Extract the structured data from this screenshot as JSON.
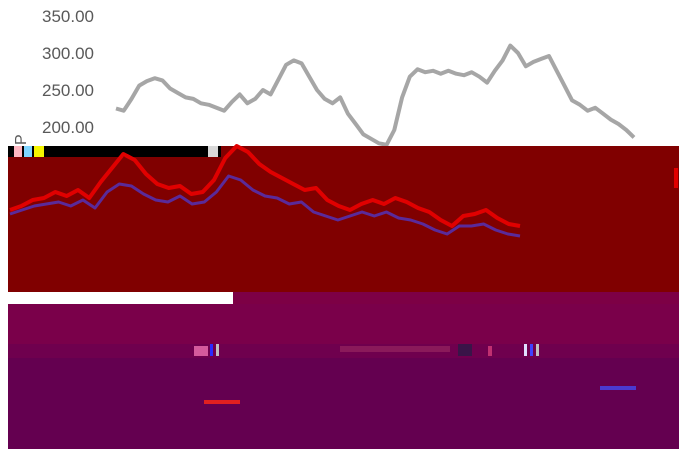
{
  "axis": {
    "y_ticks": [
      "350.00",
      "300.00",
      "250.00",
      "200.00"
    ],
    "label_fragment": "P"
  },
  "colors": {
    "grey_series": "#a6a6a6",
    "red_series": "#e00000",
    "purple_series": "#5a2a9a",
    "band_red": "#800000",
    "band_magenta": "#7a004a",
    "band_plum": "#640050"
  },
  "series_grey": [
    225,
    222,
    238,
    256,
    262,
    266,
    263,
    252,
    246,
    240,
    238,
    232,
    230,
    226,
    222,
    234,
    244,
    232,
    238,
    250,
    244,
    264,
    284,
    290,
    286,
    268,
    250,
    238,
    232,
    240,
    218,
    204,
    190,
    184,
    178,
    176,
    196,
    240,
    268,
    278,
    274,
    276,
    272,
    276,
    272,
    270,
    274,
    268,
    260,
    276,
    290,
    310,
    300,
    282,
    288,
    292,
    296,
    276,
    256,
    236,
    230,
    222,
    226,
    218,
    210,
    204,
    196,
    186
  ],
  "series_red": [
    186,
    190,
    196,
    198,
    204,
    200,
    206,
    198,
    214,
    228,
    242,
    236,
    222,
    212,
    208,
    210,
    202,
    204,
    216,
    238,
    250,
    244,
    232,
    224,
    218,
    212,
    206,
    208,
    196,
    190,
    186,
    192,
    196,
    192,
    198,
    194,
    188,
    184,
    176,
    170,
    180,
    182,
    186,
    178,
    172,
    170
  ],
  "series_purple": [
    202,
    206,
    210,
    212,
    214,
    210,
    216,
    208,
    224,
    232,
    230,
    222,
    216,
    214,
    220,
    212,
    214,
    224,
    240,
    236,
    226,
    220,
    218,
    212,
    214,
    204,
    200,
    196,
    200,
    204,
    200,
    204,
    198,
    196,
    192,
    186,
    182,
    190,
    190,
    192,
    186,
    182,
    180
  ]
}
